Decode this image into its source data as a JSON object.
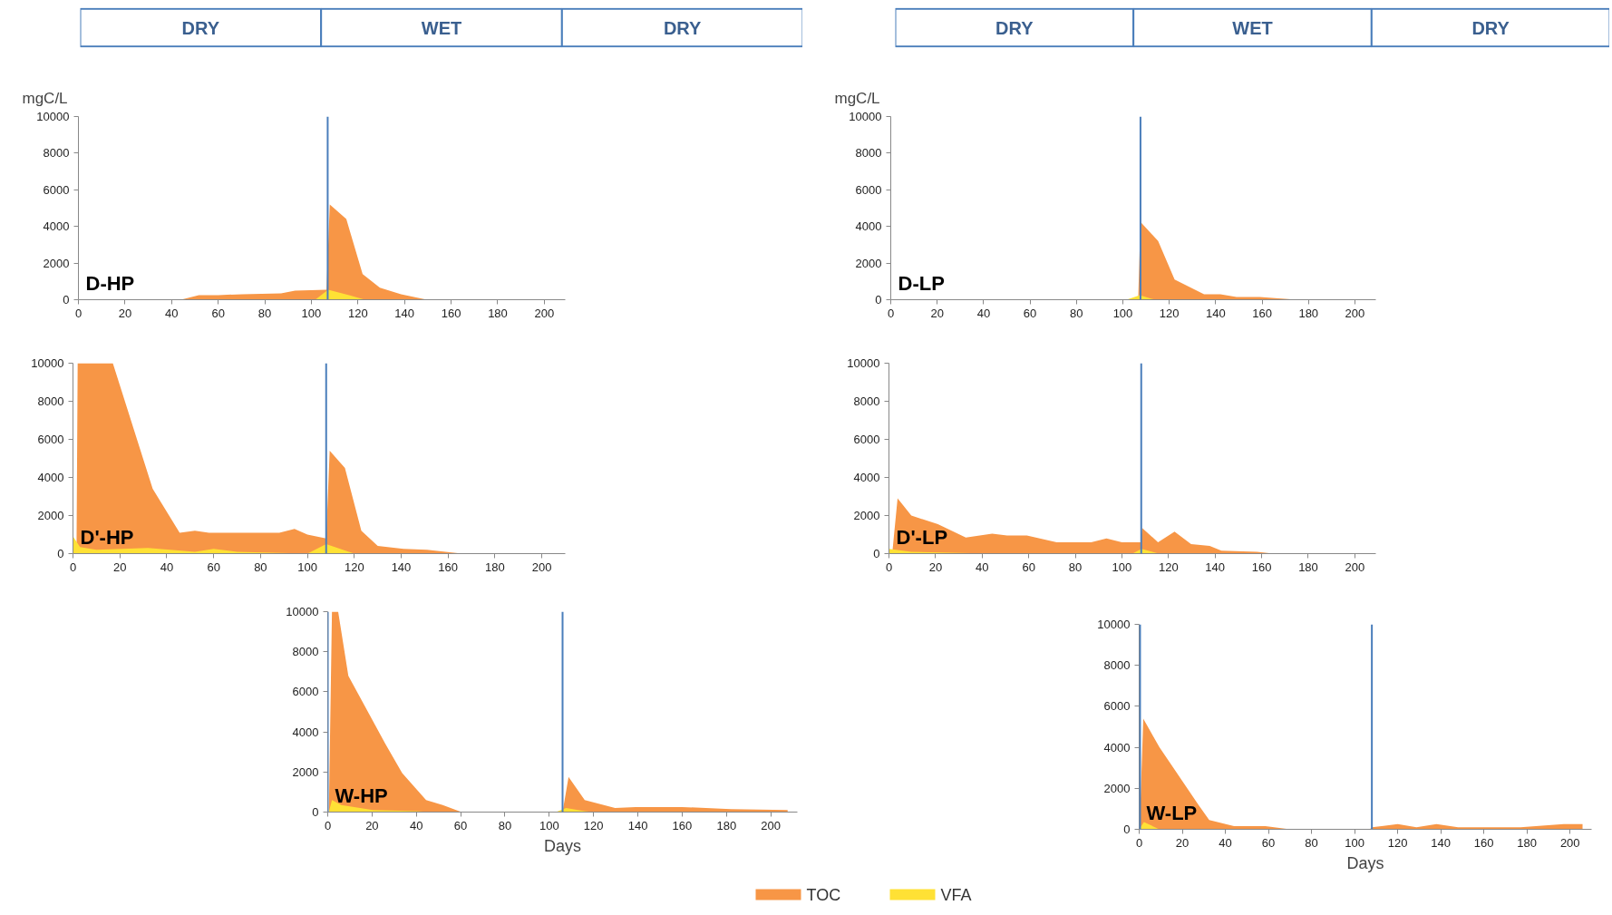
{
  "chart_data": [
    {
      "type": "other",
      "annotations": [
        "DRY",
        "WET",
        "DRY"
      ]
    },
    {
      "type": "other",
      "annotations": [
        "DRY",
        "WET",
        "DRY"
      ]
    },
    {
      "type": "area",
      "title": "D-HP",
      "ylabel": "mgC/L",
      "xlim": [
        0,
        209
      ],
      "ylim": [
        0,
        10000
      ],
      "xticks": [
        0,
        20,
        40,
        60,
        80,
        100,
        120,
        140,
        160,
        180,
        200
      ],
      "yticks": [
        0,
        2000,
        4000,
        6000,
        8000,
        10000
      ],
      "ref_lines": [
        {
          "axis": "x",
          "value": 107,
          "color": "#4a7ebb"
        }
      ],
      "series": [
        {
          "color": "#f79646",
          "x": [
            44,
            51.7,
            60,
            70.4,
            87,
            93,
            106.5,
            107.9,
            115,
            122,
            129.4,
            138.5,
            149.6
          ],
          "values": [
            0,
            250,
            250,
            300,
            350,
            500,
            550,
            5200,
            4400,
            1400,
            650,
            300,
            0
          ]
        },
        {
          "color": "#ffe135",
          "x": [
            101.7,
            107.2,
            116.2,
            123
          ],
          "values": [
            0,
            550,
            250,
            0
          ]
        }
      ]
    },
    {
      "type": "area",
      "title": "D-LP",
      "ylabel": "mgC/L",
      "xlim": [
        0,
        209
      ],
      "ylim": [
        0,
        10000
      ],
      "xticks": [
        0,
        20,
        40,
        60,
        80,
        100,
        120,
        140,
        160,
        180,
        200
      ],
      "yticks": [
        0,
        2000,
        4000,
        6000,
        8000,
        10000
      ],
      "ref_lines": [
        {
          "axis": "x",
          "value": 107.6,
          "color": "#4a7ebb"
        }
      ],
      "series": [
        {
          "color": "#f79646",
          "x": [
            106.6,
            107.6,
            115.2,
            122.3,
            135,
            142,
            149,
            159,
            175
          ],
          "values": [
            0,
            4250,
            3200,
            1100,
            300,
            300,
            150,
            150,
            0
          ]
        },
        {
          "color": "#ffe135",
          "x": [
            101.6,
            107.3,
            113.8
          ],
          "values": [
            0,
            250,
            0
          ]
        }
      ]
    },
    {
      "type": "area",
      "title": "D'-HP",
      "xlim": [
        0,
        210
      ],
      "ylim": [
        0,
        10000
      ],
      "xticks": [
        0,
        20,
        40,
        60,
        80,
        100,
        120,
        140,
        160,
        180,
        200
      ],
      "yticks": [
        0,
        2000,
        4000,
        6000,
        8000,
        10000
      ],
      "ref_lines": [
        {
          "axis": "x",
          "value": 108,
          "color": "#4a7ebb"
        }
      ],
      "series": [
        {
          "color": "#f79646",
          "x": [
            1.5,
            2,
            17,
            34,
            45.5,
            52,
            58,
            88,
            94.5,
            100,
            108,
            109.5,
            116,
            123,
            130,
            141,
            151,
            166
          ],
          "values": [
            0,
            10000,
            10000,
            3400,
            1100,
            1200,
            1100,
            1100,
            1300,
            1000,
            800,
            5400,
            4500,
            1200,
            400,
            250,
            200,
            0
          ]
        },
        {
          "color": "#ffe135",
          "x": [
            0,
            3,
            10,
            32,
            52,
            60,
            70,
            100,
            108,
            120
          ],
          "values": [
            900,
            350,
            200,
            300,
            100,
            250,
            100,
            0,
            500,
            0
          ]
        }
      ]
    },
    {
      "type": "area",
      "title": "D'-LP",
      "xlim": [
        0,
        209
      ],
      "ylim": [
        0,
        10000
      ],
      "xticks": [
        0,
        20,
        40,
        60,
        80,
        100,
        120,
        140,
        160,
        180,
        200
      ],
      "yticks": [
        0,
        2000,
        4000,
        6000,
        8000,
        10000
      ],
      "ref_lines": [
        {
          "axis": "x",
          "value": 108.3,
          "color": "#4a7ebb"
        }
      ],
      "series": [
        {
          "color": "#f79646",
          "x": [
            1.4,
            3.7,
            9.6,
            21,
            33,
            44.3,
            50.7,
            59.2,
            72,
            86.8,
            93.4,
            100,
            108,
            108.7,
            115.5,
            122.6,
            129.7,
            137.7,
            142.7,
            158,
            165
          ],
          "values": [
            0,
            2900,
            2000,
            1550,
            850,
            1050,
            950,
            950,
            600,
            600,
            800,
            600,
            600,
            1350,
            600,
            1150,
            500,
            400,
            150,
            100,
            0
          ]
        },
        {
          "color": "#ffe135",
          "x": [
            0,
            9.6,
            43.6,
            104.5,
            108.4,
            115.8
          ],
          "values": [
            250,
            100,
            0,
            0,
            250,
            0
          ]
        }
      ]
    },
    {
      "type": "area",
      "title": "W-HP",
      "xlabel": "Days",
      "legend": "bottom",
      "xlim": [
        0,
        212
      ],
      "ylim": [
        0,
        10000
      ],
      "xticks": [
        0,
        20,
        40,
        60,
        80,
        100,
        120,
        140,
        160,
        180,
        200
      ],
      "yticks": [
        0,
        2000,
        4000,
        6000,
        8000,
        10000
      ],
      "ref_lines": [
        {
          "axis": "x",
          "value": 0,
          "color": "#4a7ebb"
        },
        {
          "axis": "x",
          "value": 106,
          "color": "#4a7ebb"
        }
      ],
      "series": [
        {
          "name": "TOC",
          "color": "#f79646",
          "x": [
            0.5,
            1.9,
            4.7,
            9.3,
            26,
            33.6,
            44.4,
            51.9,
            60.4,
            106,
            108.7,
            116,
            129.7,
            139,
            160,
            182,
            207.6
          ],
          "values": [
            0,
            10000,
            10000,
            6800,
            3400,
            1950,
            600,
            350,
            0,
            0,
            1750,
            600,
            200,
            250,
            250,
            150,
            100
          ]
        },
        {
          "name": "VFA",
          "color": "#ffe135",
          "x": [
            0.5,
            1.9,
            6.1,
            20.4,
            40.4,
            46,
            103,
            107.6,
            116,
            120
          ],
          "values": [
            0,
            600,
            350,
            100,
            50,
            0,
            0,
            200,
            50,
            0
          ]
        }
      ]
    },
    {
      "type": "area",
      "title": "W-LP",
      "xlabel": "Days",
      "xlim": [
        0,
        210
      ],
      "ylim": [
        0,
        10000
      ],
      "xticks": [
        0,
        20,
        40,
        60,
        80,
        100,
        120,
        140,
        160,
        180,
        200
      ],
      "yticks": [
        0,
        2000,
        4000,
        6000,
        8000,
        10000
      ],
      "ref_lines": [
        {
          "axis": "x",
          "value": 0.4,
          "color": "#4a7ebb"
        },
        {
          "axis": "x",
          "value": 108,
          "color": "#4a7ebb"
        }
      ],
      "series": [
        {
          "color": "#f79646",
          "x": [
            0.4,
            1.9,
            9.4,
            27.5,
            32.5,
            44,
            58.6,
            70,
            107,
            108,
            120,
            128.7,
            138,
            148,
            177,
            197,
            205.8
          ],
          "values": [
            750,
            5400,
            4000,
            1200,
            450,
            150,
            150,
            0,
            0,
            100,
            250,
            100,
            250,
            100,
            100,
            250,
            250
          ]
        },
        {
          "color": "#ffe135",
          "x": [
            0,
            2.2,
            9.4
          ],
          "values": [
            0,
            350,
            0
          ]
        }
      ]
    }
  ]
}
